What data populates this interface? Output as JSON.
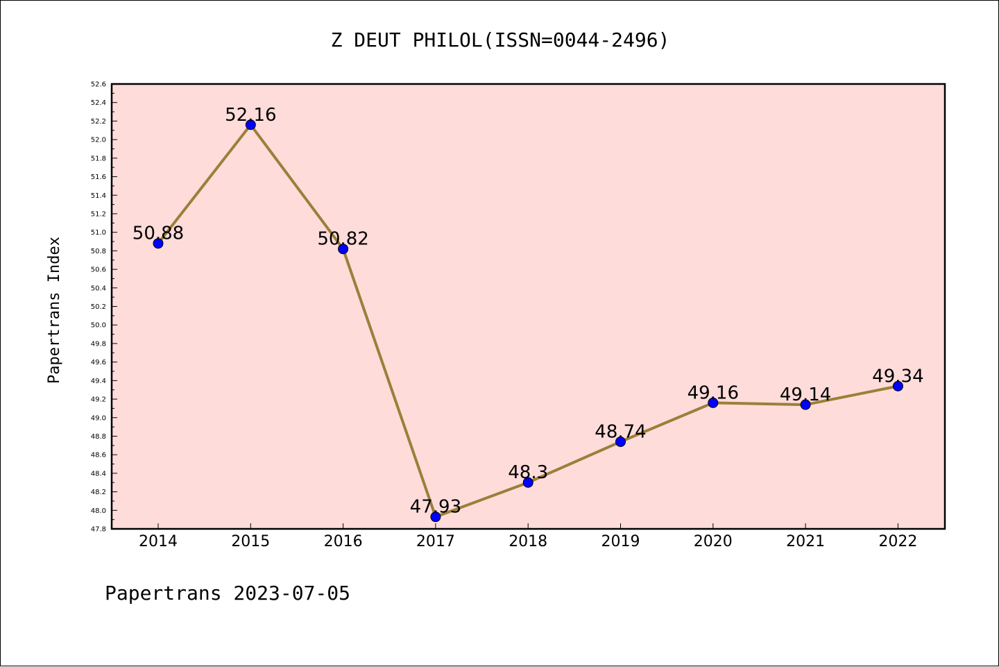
{
  "title": "Z DEUT PHILOL(ISSN=0044-2496)",
  "footer": "Papertrans 2023-07-05",
  "colors": {
    "plot_background": "#fddcda",
    "line": "#9a8039",
    "marker": "#0000ff",
    "frame": "#000000"
  },
  "chart_data": {
    "type": "line",
    "title": "Z DEUT PHILOL(ISSN=0044-2496)",
    "xlabel": "",
    "ylabel": "Papertrans Index",
    "categories": [
      "2014",
      "2015",
      "2016",
      "2017",
      "2018",
      "2019",
      "2020",
      "2021",
      "2022"
    ],
    "series": [
      {
        "values": [
          50.88,
          52.16,
          50.82,
          47.93,
          48.3,
          48.74,
          49.16,
          49.14,
          49.34
        ],
        "labels": [
          "50.88",
          "52.16",
          "50.82",
          "47.93",
          "48.3",
          "48.74",
          "49.16",
          "49.14",
          "49.34"
        ]
      }
    ],
    "ylim": [
      47.8,
      52.6
    ],
    "yticks": [
      "47.8",
      "48.0",
      "48.2",
      "48.4",
      "48.6",
      "48.8",
      "49.0",
      "49.2",
      "49.4",
      "49.6",
      "49.8",
      "50.0",
      "50.2",
      "50.4",
      "50.6",
      "50.8",
      "51.0",
      "51.2",
      "51.4",
      "51.6",
      "51.8",
      "52.0",
      "52.2",
      "52.4",
      "52.6"
    ],
    "grid": false,
    "legend": "none"
  }
}
